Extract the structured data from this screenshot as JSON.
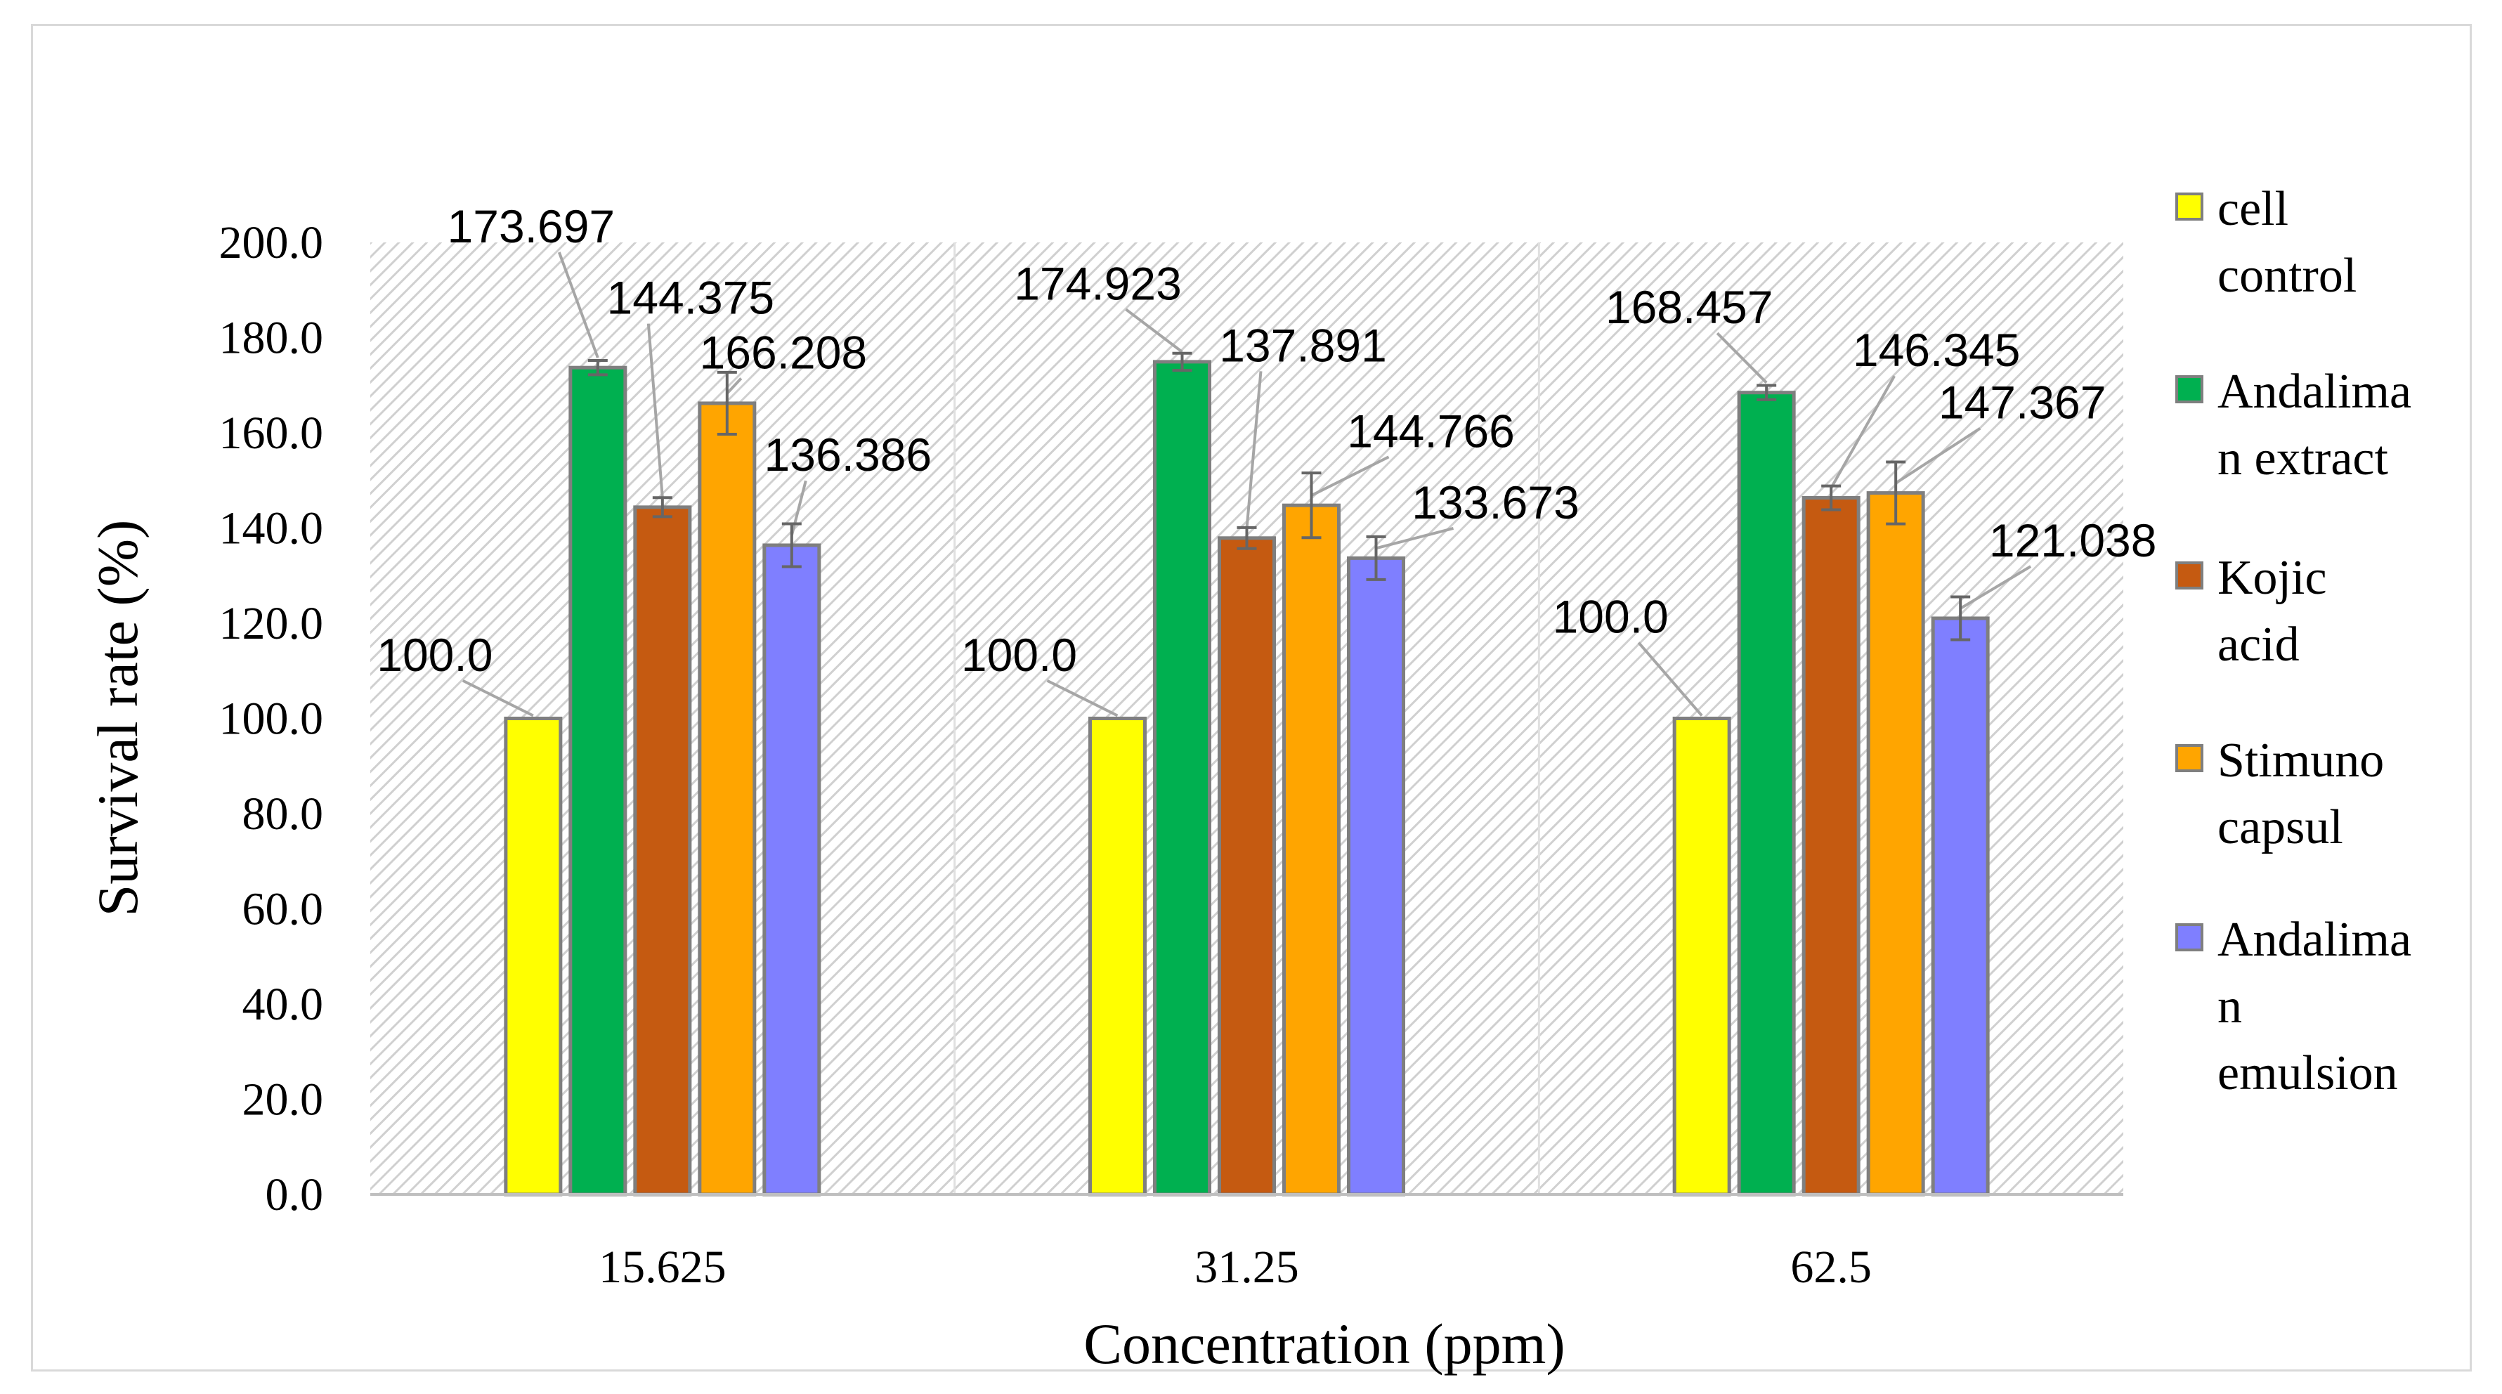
{
  "chart_data": {
    "type": "bar",
    "title": "",
    "xlabel": "Concentration (ppm)",
    "ylabel": "Survival rate (%)",
    "ylim": [
      0,
      200
    ],
    "yticks": [
      "0.0",
      "20.0",
      "40.0",
      "60.0",
      "80.0",
      "100.0",
      "120.0",
      "140.0",
      "160.0",
      "180.0",
      "200.0"
    ],
    "categories": [
      "15.625",
      "31.25",
      "62.5"
    ],
    "legend_position": "right",
    "grid": false,
    "series": [
      {
        "name": "cell control",
        "legend_lines": [
          "cell",
          "control"
        ],
        "color": "#ffff00",
        "values": [
          100.0,
          100.0,
          100.0
        ],
        "labels": [
          "100.0",
          "100.0",
          "100.0"
        ],
        "errors": [
          0,
          0,
          0
        ]
      },
      {
        "name": "Andaliman extract",
        "legend_lines": [
          "Andalima",
          "n extract"
        ],
        "color": "#00b050",
        "values": [
          173.697,
          174.923,
          168.457
        ],
        "labels": [
          "173.697",
          "174.923",
          "168.457"
        ],
        "errors": [
          1.5,
          1.8,
          1.5
        ]
      },
      {
        "name": "Kojic acid",
        "legend_lines": [
          "Kojic",
          "acid"
        ],
        "color": "#c55a11",
        "values": [
          144.375,
          137.891,
          146.345
        ],
        "labels": [
          "144.375",
          "137.891",
          "146.345"
        ],
        "errors": [
          2.0,
          2.2,
          2.5
        ]
      },
      {
        "name": "Stimuno capsul",
        "legend_lines": [
          "Stimuno",
          "capsul"
        ],
        "color": "#ffa500",
        "values": [
          166.208,
          144.766,
          147.367
        ],
        "labels": [
          "166.208",
          "144.766",
          "147.367"
        ],
        "errors": [
          6.5,
          6.8,
          6.5
        ]
      },
      {
        "name": "Andaliman emulsion",
        "legend_lines": [
          "Andalima",
          "n",
          "emulsion"
        ],
        "color": "#7f7fff",
        "values": [
          136.386,
          133.673,
          121.038
        ],
        "labels": [
          "136.386",
          "133.673",
          "121.038"
        ],
        "errors": [
          4.5,
          4.5,
          4.5
        ]
      }
    ]
  }
}
